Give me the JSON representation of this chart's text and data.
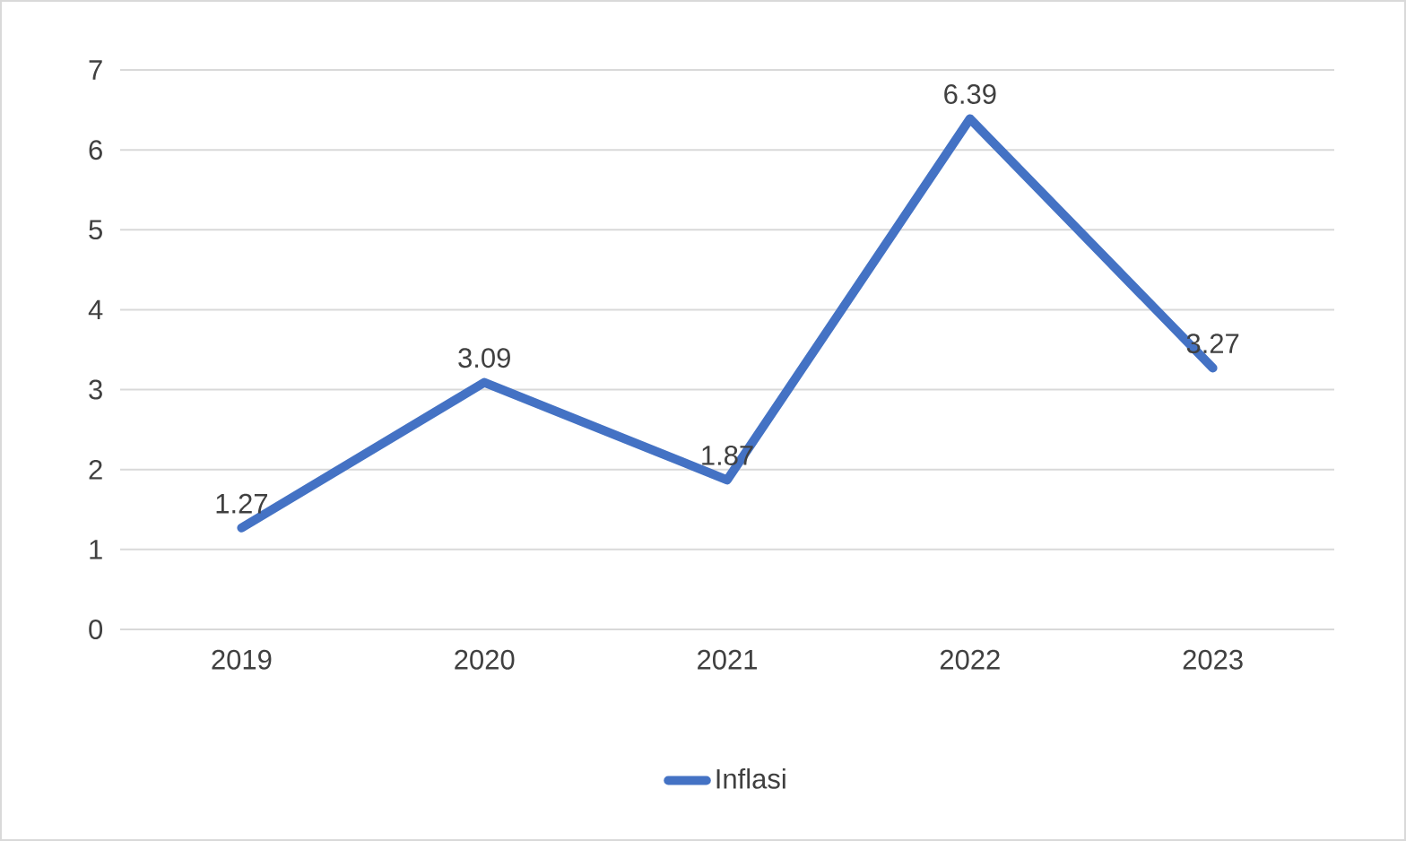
{
  "chart_data": {
    "type": "line",
    "categories": [
      "2019",
      "2020",
      "2021",
      "2022",
      "2023"
    ],
    "series": [
      {
        "name": "Inflasi",
        "color": "#4472c4",
        "values": [
          1.27,
          3.09,
          1.87,
          6.39,
          3.27
        ]
      }
    ],
    "ylim": [
      0,
      7
    ],
    "yticks": [
      0,
      1,
      2,
      3,
      4,
      5,
      6,
      7
    ],
    "grid": "y",
    "legend": "bottom",
    "data_labels": true,
    "marker": "none",
    "line_style": "solid"
  }
}
